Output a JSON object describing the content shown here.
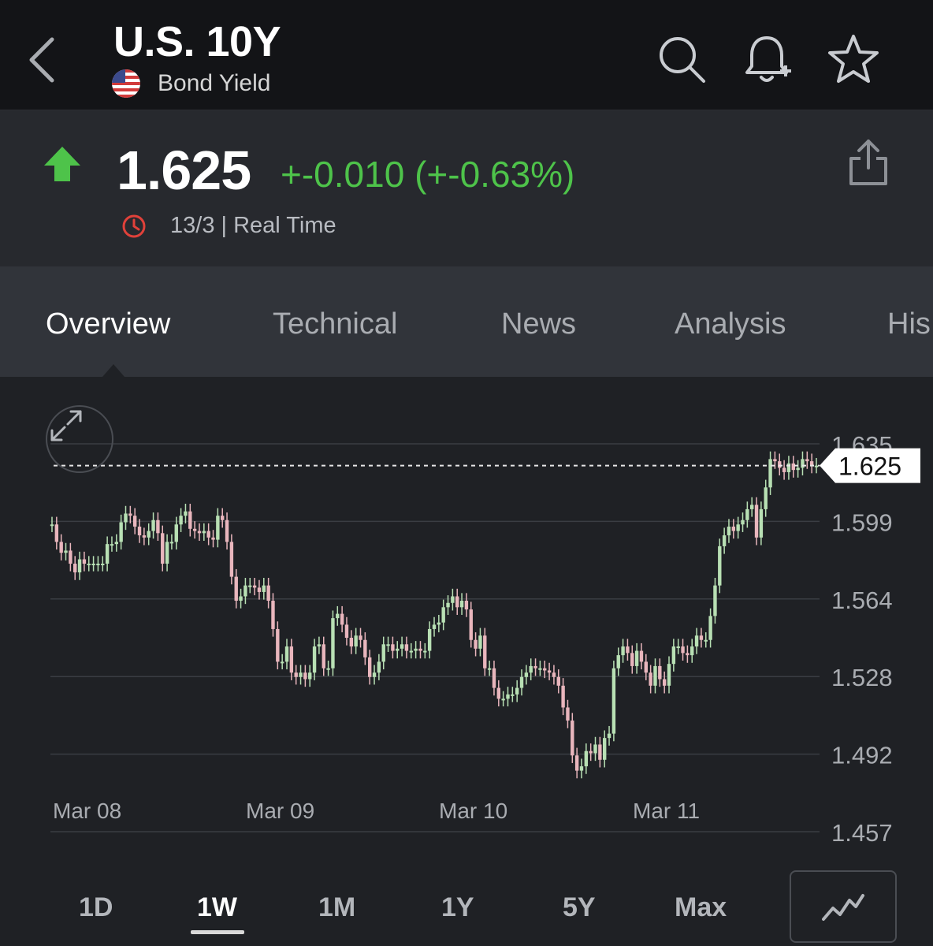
{
  "header": {
    "title": "U.S. 10Y",
    "subtitle": "Bond Yield",
    "icons": [
      "back-chevron-icon",
      "us-flag-icon",
      "search-icon",
      "add-alert-bell-icon",
      "watchlist-star-icon"
    ]
  },
  "quote": {
    "price": "1.625",
    "change": "+-0.010 (+-0.63%)",
    "time": "13/3 | Real Time",
    "direction": "up",
    "colors": {
      "up": "#4ec34a",
      "clock": "#e0413a"
    }
  },
  "tabs": [
    {
      "label": "Overview",
      "active": true
    },
    {
      "label": "Technical",
      "active": false
    },
    {
      "label": "News",
      "active": false
    },
    {
      "label": "Analysis",
      "active": false
    },
    {
      "label": "His",
      "active": false
    }
  ],
  "chart_data": {
    "type": "candlestick",
    "y_ticks": [
      "1.635",
      "1.599",
      "1.564",
      "1.528",
      "1.492",
      "1.457"
    ],
    "ylim": [
      1.457,
      1.635
    ],
    "x_labels": [
      "Mar 08",
      "Mar 09",
      "Mar 10",
      "Mar 11"
    ],
    "current_value_label": "1.625",
    "current_value": 1.625,
    "grid": true,
    "series": [
      {
        "values": [
          1.598,
          1.59,
          1.585,
          1.586,
          1.58,
          1.576,
          1.582,
          1.58,
          1.58,
          1.58,
          1.58,
          1.58,
          1.589,
          1.589,
          1.59,
          1.599,
          1.603,
          1.602,
          1.597,
          1.593,
          1.592,
          1.595,
          1.6,
          1.594,
          1.58,
          1.59,
          1.59,
          1.598,
          1.602,
          1.604,
          1.596,
          1.595,
          1.594,
          1.595,
          1.592,
          1.591,
          1.602,
          1.6,
          1.59,
          1.574,
          1.563,
          1.565,
          1.57,
          1.57,
          1.569,
          1.567,
          1.57,
          1.563,
          1.55,
          1.535,
          1.535,
          1.542,
          1.53,
          1.528,
          1.53,
          1.527,
          1.53,
          1.542,
          1.543,
          1.532,
          1.532,
          1.555,
          1.557,
          1.552,
          1.546,
          1.542,
          1.547,
          1.545,
          1.537,
          1.528,
          1.53,
          1.535,
          1.543,
          1.543,
          1.54,
          1.541,
          1.543,
          1.54,
          1.54,
          1.541,
          1.54,
          1.54,
          1.55,
          1.552,
          1.553,
          1.56,
          1.562,
          1.565,
          1.56,
          1.563,
          1.559,
          1.545,
          1.541,
          1.547,
          1.532,
          1.532,
          1.523,
          1.518,
          1.518,
          1.52,
          1.52,
          1.523,
          1.528,
          1.53,
          1.533,
          1.532,
          1.532,
          1.531,
          1.53,
          1.528,
          1.524,
          1.514,
          1.508,
          1.492,
          1.485,
          1.487,
          1.494,
          1.493,
          1.497,
          1.49,
          1.5,
          1.502,
          1.532,
          1.538,
          1.542,
          1.539,
          1.533,
          1.54,
          1.535,
          1.53,
          1.524,
          1.533,
          1.527,
          1.524,
          1.534,
          1.542,
          1.542,
          1.539,
          1.538,
          1.542,
          1.547,
          1.545,
          1.545,
          1.556,
          1.57,
          1.588,
          1.593,
          1.597,
          1.595,
          1.598,
          1.6,
          1.605,
          1.607,
          1.592,
          1.605,
          1.615,
          1.628,
          1.627,
          1.624,
          1.622,
          1.626,
          1.623,
          1.624,
          1.628,
          1.627,
          1.625,
          1.625
        ],
        "color_up": "#b8e0b4",
        "color_down": "#e9b6bd"
      }
    ]
  },
  "ranges": [
    {
      "label": "1D",
      "active": false
    },
    {
      "label": "1W",
      "active": true
    },
    {
      "label": "1M",
      "active": false
    },
    {
      "label": "1Y",
      "active": false
    },
    {
      "label": "5Y",
      "active": false
    },
    {
      "label": "Max",
      "active": false
    }
  ],
  "controls": {
    "expand_icon": "expand-arrows-icon",
    "chart_type_icon": "line-chart-icon",
    "share_icon": "share-icon",
    "clock_icon": "clock-icon"
  }
}
